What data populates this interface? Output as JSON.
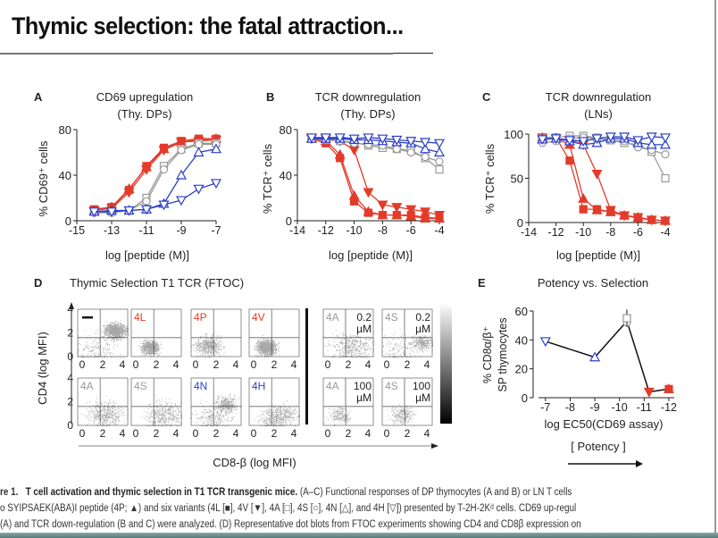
{
  "slide": {
    "title": "Thymic selection: the fatal attraction..."
  },
  "colors": {
    "red": "#e33b2a",
    "gray": "#9a9a9a",
    "blue": "#2b3fc8"
  },
  "chart_data": [
    {
      "panel": "A",
      "type": "line",
      "title": "CD69 upregulation",
      "subtitle": "(Thy. DPs)",
      "xlabel": "log [peptide (M)]",
      "ylabel": "% CD69⁺ cells",
      "xlim": [
        -15,
        -7
      ],
      "ylim": [
        0,
        80
      ],
      "xticks": [
        -15,
        -13,
        -11,
        -9,
        -7
      ],
      "yticks": [
        0,
        40,
        80
      ],
      "x": [
        -14,
        -13,
        -12,
        -11,
        -10,
        -9,
        -8,
        -7
      ],
      "series": [
        {
          "name": "4L",
          "marker": "square-filled",
          "color": "red",
          "values": [
            10,
            12,
            27,
            48,
            64,
            70,
            72,
            72
          ]
        },
        {
          "name": "4P",
          "marker": "triangle-up-filled",
          "color": "red",
          "values": [
            9,
            12,
            28,
            47,
            63,
            69,
            71,
            72
          ]
        },
        {
          "name": "4V",
          "marker": "triangle-down-filled",
          "color": "red",
          "values": [
            9,
            11,
            25,
            45,
            62,
            69,
            70,
            71
          ]
        },
        {
          "name": "4A",
          "marker": "square-open",
          "color": "gray",
          "values": [
            8,
            8,
            9,
            20,
            48,
            63,
            68,
            68
          ]
        },
        {
          "name": "4S",
          "marker": "circle-open",
          "color": "gray",
          "values": [
            7,
            7,
            9,
            17,
            45,
            62,
            67,
            67
          ]
        },
        {
          "name": "4N",
          "marker": "triangle-up-open",
          "color": "blue",
          "values": [
            8,
            9,
            9,
            10,
            15,
            40,
            60,
            63
          ]
        },
        {
          "name": "4H",
          "marker": "triangle-down-open",
          "color": "blue",
          "values": [
            8,
            8,
            9,
            10,
            14,
            18,
            28,
            33
          ]
        }
      ]
    },
    {
      "panel": "B",
      "type": "line",
      "title": "TCR downregulation",
      "subtitle": "(Thy. DPs)",
      "xlabel": "log [peptide (M)]",
      "ylabel": "% TCR⁺ cells",
      "xlim": [
        -14,
        -4
      ],
      "ylim": [
        0,
        80
      ],
      "xticks": [
        -14,
        -12,
        -10,
        -8,
        -6,
        -4
      ],
      "yticks": [
        0,
        40,
        80
      ],
      "x": [
        -13,
        -12,
        -11,
        -10,
        -9,
        -8,
        -7,
        -6,
        -5,
        -4
      ],
      "series": [
        {
          "name": "4L",
          "marker": "square-filled",
          "color": "red",
          "values": [
            72,
            68,
            55,
            17,
            7,
            5,
            5,
            5,
            3,
            2
          ]
        },
        {
          "name": "4P",
          "marker": "triangle-up-filled",
          "color": "red",
          "values": [
            72,
            70,
            58,
            22,
            8,
            5,
            5,
            4,
            2,
            2
          ]
        },
        {
          "name": "4V",
          "marker": "triangle-down-filled",
          "color": "red",
          "values": [
            72,
            72,
            70,
            62,
            25,
            14,
            12,
            10,
            8,
            5
          ]
        },
        {
          "name": "4A",
          "marker": "square-open",
          "color": "gray",
          "values": [
            72,
            71,
            70,
            69,
            66,
            64,
            63,
            62,
            55,
            45
          ]
        },
        {
          "name": "4S",
          "marker": "circle-open",
          "color": "gray",
          "values": [
            72,
            71,
            70,
            68,
            67,
            66,
            63,
            60,
            56,
            52
          ]
        },
        {
          "name": "4N",
          "marker": "triangle-up-open",
          "color": "blue",
          "values": [
            72,
            72,
            72,
            71,
            71,
            70,
            69,
            68,
            63,
            60
          ]
        },
        {
          "name": "4H",
          "marker": "triangle-down-open",
          "color": "blue",
          "values": [
            73,
            73,
            73,
            72,
            73,
            72,
            71,
            70,
            69,
            68
          ]
        }
      ]
    },
    {
      "panel": "C",
      "type": "line",
      "title": "TCR downregulation",
      "subtitle": "(LNs)",
      "xlabel": "log [peptide (M)]",
      "ylabel": "% TCR⁺ cells",
      "xlim": [
        -14,
        -4
      ],
      "ylim": [
        0,
        100
      ],
      "xticks": [
        -14,
        -12,
        -10,
        -8,
        -6,
        -4
      ],
      "yticks": [
        0,
        50,
        100
      ],
      "x": [
        -13,
        -12,
        -11,
        -10,
        -9,
        -8,
        -7,
        -6,
        -5,
        -4
      ],
      "series": [
        {
          "name": "4L",
          "marker": "square-filled",
          "color": "red",
          "values": [
            96,
            96,
            70,
            15,
            15,
            12,
            8,
            5,
            3,
            2
          ]
        },
        {
          "name": "4P",
          "marker": "triangle-up-filled",
          "color": "red",
          "values": [
            96,
            95,
            88,
            27,
            14,
            12,
            8,
            6,
            3,
            2
          ]
        },
        {
          "name": "4V",
          "marker": "triangle-down-filled",
          "color": "red",
          "values": [
            96,
            95,
            93,
            88,
            55,
            14,
            8,
            6,
            3,
            2
          ]
        },
        {
          "name": "4A",
          "marker": "square-open",
          "color": "gray",
          "values": [
            95,
            96,
            98,
            98,
            96,
            93,
            90,
            88,
            80,
            50
          ]
        },
        {
          "name": "4S",
          "marker": "circle-open",
          "color": "gray",
          "values": [
            90,
            92,
            95,
            96,
            95,
            93,
            92,
            85,
            82,
            77
          ]
        },
        {
          "name": "4N",
          "marker": "triangle-up-open",
          "color": "blue",
          "values": [
            94,
            95,
            92,
            88,
            90,
            95,
            95,
            90,
            88,
            88
          ]
        },
        {
          "name": "4H",
          "marker": "triangle-down-open",
          "color": "blue",
          "values": [
            94,
            95,
            93,
            92,
            95,
            97,
            97,
            93,
            97,
            96
          ]
        }
      ]
    },
    {
      "panel": "E",
      "type": "line",
      "title": "Potency vs. Selection",
      "xlabel": "log EC50(CD69 assay)",
      "ylabel": [
        "% CD8α/β⁺",
        "SP thymocytes"
      ],
      "xlim": [
        -6.5,
        -12.4
      ],
      "ylim": [
        0,
        60
      ],
      "xticks": [
        -7,
        -8,
        -9,
        -10,
        -11,
        -12
      ],
      "yticks": [
        0,
        20,
        40,
        60
      ],
      "points": [
        {
          "name": "4H",
          "marker": "triangle-down-open",
          "color": "blue",
          "x": -7,
          "y": 39
        },
        {
          "name": "4N",
          "marker": "triangle-up-open",
          "color": "blue",
          "x": -9,
          "y": 28
        },
        {
          "name": "4S",
          "marker": "circle-open",
          "color": "gray",
          "x": -10.3,
          "y": 52
        },
        {
          "name": "4A",
          "marker": "square-open",
          "color": "gray",
          "x": -10.3,
          "y": 55,
          "error": 6
        },
        {
          "name": "4V",
          "marker": "triangle-down-filled",
          "color": "red",
          "x": -11.2,
          "y": 4
        },
        {
          "name": "4P",
          "marker": "triangle-up-filled",
          "color": "red",
          "x": -12,
          "y": 6
        },
        {
          "name": "4L",
          "marker": "square-filled",
          "color": "red",
          "x": -12,
          "y": 6
        }
      ],
      "line_order": [
        -7,
        -9,
        -10.3,
        -11.2,
        -12
      ],
      "line_values": [
        39,
        28,
        53,
        4,
        6
      ],
      "annotation": "[ Potency ]"
    }
  ],
  "panelD": {
    "letter": "D",
    "title": "Thymic Selection T1 TCR (FTOC)",
    "ylabel": "CD4 (log MFI)",
    "xlabel": "CD8-β (log MFI)",
    "ticks": [
      "0",
      "2",
      "4"
    ],
    "plots": [
      {
        "label": "—",
        "color": "black",
        "population": [
          [
            3,
            2.2,
            0.4,
            900
          ],
          [
            1.5,
            0.6,
            0.9,
            200
          ]
        ]
      },
      {
        "label": "4L",
        "color": "red",
        "population": [
          [
            1.5,
            0.8,
            0.35,
            700
          ]
        ]
      },
      {
        "label": "4P",
        "color": "red",
        "population": [
          [
            1.4,
            0.9,
            0.5,
            500
          ]
        ]
      },
      {
        "label": "4V",
        "color": "red",
        "population": [
          [
            1.4,
            0.8,
            0.4,
            900
          ]
        ]
      },
      {
        "label": "4A",
        "conc": [
          "0.2",
          "µM"
        ],
        "color": "gray",
        "population": [
          [
            2.3,
            0.9,
            0.8,
            450
          ]
        ]
      },
      {
        "label": "4S",
        "conc": [
          "0.2",
          "µM"
        ],
        "color": "gray",
        "population": [
          [
            3.2,
            1.2,
            0.4,
            300
          ],
          [
            1.5,
            0.6,
            0.8,
            150
          ]
        ]
      },
      {
        "label": "4A",
        "color": "gray",
        "population": [
          [
            2.2,
            1.0,
            0.7,
            450
          ]
        ]
      },
      {
        "label": "4S",
        "color": "gray",
        "population": [
          [
            2.6,
            0.9,
            0.7,
            400
          ]
        ]
      },
      {
        "label": "4N",
        "color": "blue",
        "population": [
          [
            2.8,
            1.8,
            0.45,
            350
          ],
          [
            1.8,
            0.7,
            0.7,
            250
          ]
        ]
      },
      {
        "label": "4H",
        "color": "blue",
        "population": [
          [
            2.0,
            0.6,
            0.6,
            350
          ],
          [
            3.0,
            1.0,
            0.5,
            150
          ]
        ]
      },
      {
        "label": "4A",
        "conc": [
          "100",
          "µM"
        ],
        "color": "gray",
        "population": [
          [
            1.3,
            0.9,
            0.4,
            200
          ]
        ]
      },
      {
        "label": "4S",
        "conc": [
          "100",
          "µM"
        ],
        "color": "gray",
        "population": [
          [
            1.6,
            0.9,
            0.45,
            250
          ]
        ]
      }
    ]
  },
  "caption": {
    "line1_label": "re 1.",
    "line1_bold": "T cell activation and thymic selection in T1 TCR transgenic mice.",
    "line1_rest": "(A–C) Functional responses of DP thymocytes (A and B) or LN T cells",
    "line2": "o SYIPSAEK(ABA)I peptide (4P; ▲) and six variants (4L [■], 4V [▼], 4A [□], 4S [○], 4N [△], and 4H [▽]) presented by T-2H-2Kᵈ cells. CD69 up-regul",
    "line3": "(A) and TCR down-regulation (B and C) were analyzed. (D) Representative dot blots from FTOC experiments showing CD4 and CD8β expression on"
  }
}
